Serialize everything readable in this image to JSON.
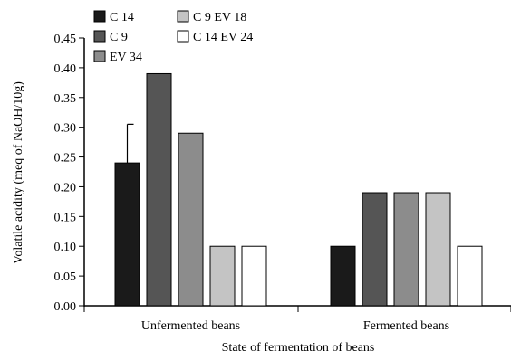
{
  "chart_data": {
    "type": "bar",
    "title": "",
    "xlabel": "State of fermentation of beans",
    "ylabel": "Volatile acidity (meq of NaOH/10g)",
    "categories": [
      "Unfermented beans",
      "Fermented beans"
    ],
    "ylim": [
      0,
      0.45
    ],
    "yticks": [
      "0.00",
      "0.05",
      "0.10",
      "0.15",
      "0.20",
      "0.25",
      "0.30",
      "0.35",
      "0.40",
      "0.45"
    ],
    "grid": false,
    "legend_position": "top-left",
    "series": [
      {
        "name": "C 14",
        "color": "#1a1a1a",
        "values": [
          0.24,
          0.1
        ],
        "error": [
          0.065,
          0
        ]
      },
      {
        "name": "C 9",
        "color": "#555555",
        "values": [
          0.39,
          0.19
        ],
        "error": [
          0,
          0
        ]
      },
      {
        "name": "EV 34",
        "color": "#8c8c8c",
        "values": [
          0.29,
          0.19
        ],
        "error": [
          0,
          0
        ]
      },
      {
        "name": "C 9 EV 18",
        "color": "#c4c4c4",
        "values": [
          0.1,
          0.19
        ],
        "error": [
          0,
          0
        ]
      },
      {
        "name": "C 14 EV 24",
        "color": "#ffffff",
        "values": [
          0.1,
          0.1
        ],
        "error": [
          0,
          0
        ]
      }
    ]
  }
}
